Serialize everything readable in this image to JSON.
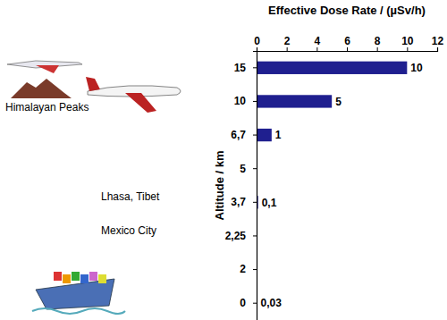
{
  "chart_data": {
    "type": "bar",
    "orientation": "horizontal",
    "x_label": "Effective Dose Rate / (µSv/h)",
    "y_label": "Altitude / km",
    "categories": [
      "15",
      "10",
      "6,7",
      "5",
      "3,7",
      "2,25",
      "2",
      "0"
    ],
    "values": [
      10,
      5,
      1,
      null,
      0.1,
      null,
      null,
      0.03
    ],
    "value_labels": [
      "10",
      "5",
      "1",
      null,
      "0,1",
      null,
      null,
      "0,03"
    ],
    "data_labels": true,
    "color": "#1f1f8f",
    "xlim": [
      0,
      12
    ],
    "xticks": [
      0,
      2,
      4,
      6,
      8,
      10,
      12
    ],
    "grid": false,
    "annotations": [
      "Himalayan Peaks",
      "Lhasa, Tibet",
      "Mexico City"
    ]
  }
}
